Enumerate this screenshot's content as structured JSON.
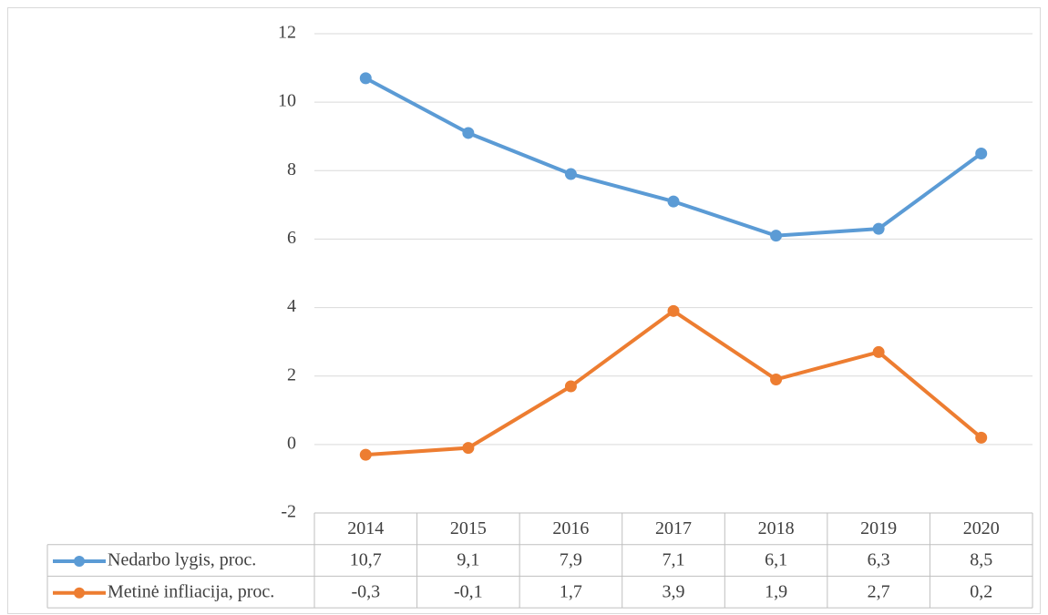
{
  "chart_data": {
    "type": "line",
    "categories": [
      "2014",
      "2015",
      "2016",
      "2017",
      "2018",
      "2019",
      "2020"
    ],
    "series": [
      {
        "name": "Nedarbo lygis, proc.",
        "color": "#5b9bd5",
        "values": [
          10.7,
          9.1,
          7.9,
          7.1,
          6.1,
          6.3,
          8.5
        ],
        "value_labels": [
          "10,7",
          "9,1",
          "7,9",
          "7,1",
          "6,1",
          "6,3",
          "8,5"
        ]
      },
      {
        "name": "Metinė infliacija, proc.",
        "color": "#ed7d31",
        "values": [
          -0.3,
          -0.1,
          1.7,
          3.9,
          1.9,
          2.7,
          0.2
        ],
        "value_labels": [
          "-0,3",
          "-0,1",
          "1,7",
          "3,9",
          "1,9",
          "2,7",
          "0,2"
        ]
      }
    ],
    "ylim": [
      -2,
      12
    ],
    "yticks": [
      -2,
      0,
      2,
      4,
      6,
      8,
      10,
      12
    ],
    "grid": true,
    "data_table": true
  }
}
